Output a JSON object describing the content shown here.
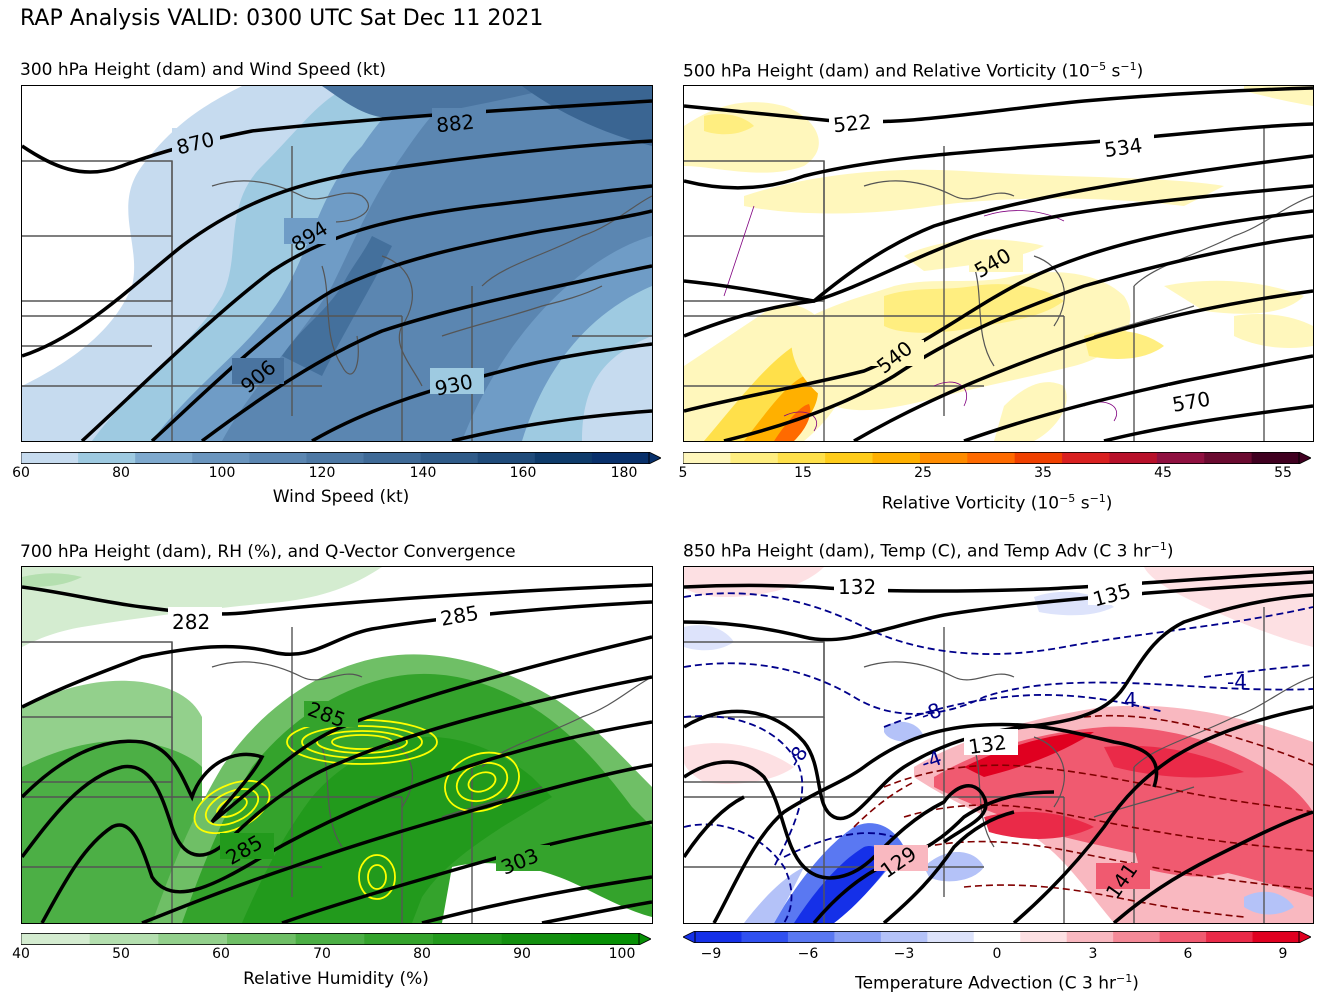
{
  "suptitle": "RAP Analysis VALID: 0300 UTC Sat Dec 11 2021",
  "panels": [
    {
      "title_parts": [
        "300 hPa Height (dam) and Wind Speed (kt)"
      ],
      "colorbar": {
        "label": "Wind Speed (kt)",
        "ticks": [
          "60",
          "80",
          "100",
          "120",
          "140",
          "160",
          "180"
        ],
        "colors": [
          "#c6dbef",
          "#9ecae1",
          "#7ea9ce",
          "#6a95be",
          "#5b86b1",
          "#4d78a4",
          "#3f6a97",
          "#2f5b89",
          "#1f4b7a",
          "#0e3b6b",
          "#08306b"
        ]
      },
      "contour_labels": [
        "870",
        "882",
        "894",
        "906",
        "930"
      ]
    },
    {
      "title_parts": [
        "500 hPa Height (dam) and Relative Vorticity (10",
        "−5",
        " s",
        "−1",
        ")"
      ],
      "colorbar": {
        "label_parts": [
          "Relative Vorticity (10",
          "−5",
          " s",
          "−1",
          ")"
        ],
        "ticks": [
          "5",
          "15",
          "25",
          "35",
          "45",
          "55"
        ],
        "colors": [
          "#fff7bc",
          "#ffee80",
          "#ffe04a",
          "#ffcc1a",
          "#ffb000",
          "#ff8c00",
          "#ff6a00",
          "#f04000",
          "#d92020",
          "#b8102a",
          "#901040",
          "#6b0a30",
          "#400020"
        ]
      },
      "contour_labels": [
        "522",
        "534",
        "540",
        "540",
        "570"
      ]
    },
    {
      "title_parts": [
        "700 hPa Height (dam), RH (%), and Q-Vector Convergence"
      ],
      "colorbar": {
        "label": "Relative Humidity (%)",
        "ticks": [
          "40",
          "50",
          "60",
          "70",
          "80",
          "90",
          "100"
        ],
        "colors": [
          "#d4ecd0",
          "#b4dfaf",
          "#93d08c",
          "#6fbf66",
          "#4caf45",
          "#34a32c",
          "#229a1c",
          "#138f0f",
          "#079005"
        ]
      },
      "contour_labels": [
        "282",
        "285",
        "285",
        "285",
        "303"
      ]
    },
    {
      "title_parts": [
        "850 hPa Height (dam), Temp (C), and Temp Adv (C 3 hr",
        "−1",
        ")"
      ],
      "colorbar": {
        "label_parts": [
          "Temperature Advection (C 3 hr",
          "−1",
          ")"
        ],
        "ticks": [
          "−9",
          "−6",
          "−3",
          "0",
          "3",
          "6",
          "9"
        ],
        "colors": [
          "#1530e8",
          "#3050f0",
          "#5a78f2",
          "#8aa0f5",
          "#b4c2f8",
          "#dde3fb",
          "#ffffff",
          "#fde0e3",
          "#f9b8c0",
          "#f58a98",
          "#f05a70",
          "#ea2a48",
          "#e00020"
        ]
      },
      "contour_labels": [
        "132",
        "135",
        "132",
        "129",
        "141"
      ],
      "temp_labels": [
        "-4",
        "-8",
        "-8",
        "-4",
        "4"
      ]
    }
  ]
}
